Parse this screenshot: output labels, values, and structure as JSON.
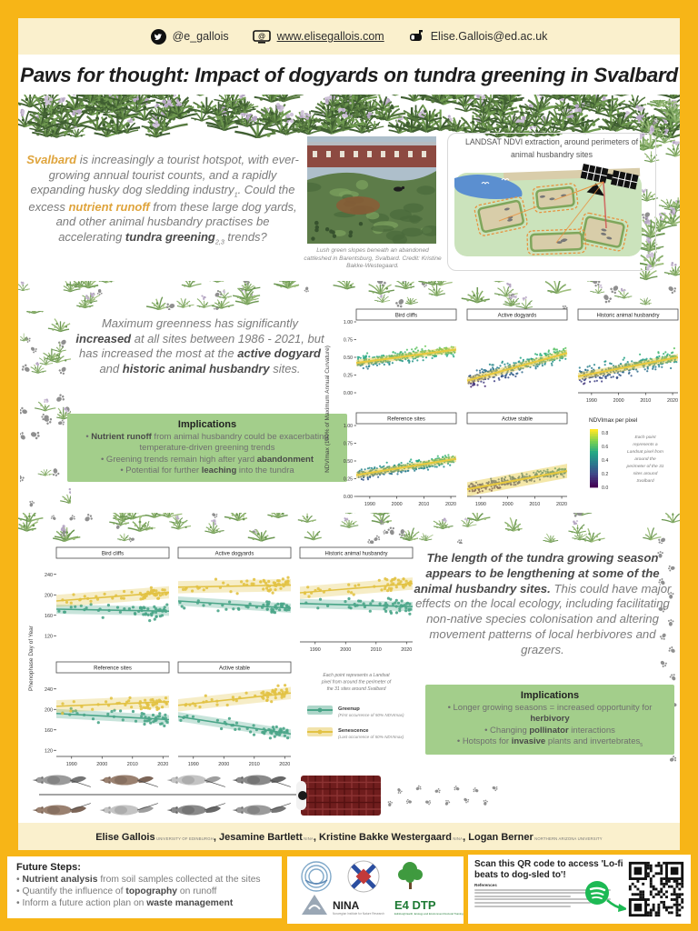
{
  "colors": {
    "frame_yellow": "#F7B517",
    "cream": "#FAF0CD",
    "implications_green": "#A3CE8B",
    "gold_text": "#DFA43C",
    "trend_yellow": "#E7C93F",
    "greenup_green": "#4AA588",
    "senescence_yellow": "#E2C244",
    "spotify_green": "#1DB954",
    "sled_red": "#6F1D1D",
    "viridis": [
      "#440154",
      "#414487",
      "#2A788E",
      "#22A884",
      "#7AD151",
      "#FDE725"
    ]
  },
  "header": {
    "twitter_handle": "@e_gallois",
    "website": "www.elisegallois.com",
    "email": "Elise.Gallois@ed.ac.uk"
  },
  "title": "Paws for thought: Impact of dogyards on tundra greening in Svalbard",
  "intro_segments": [
    {
      "t": "Svalbard",
      "s": "gold"
    },
    {
      "t": " is increasingly a tourist hotspot, with ever-growing annual tourist counts, and a rapidly expanding husky dog sledding industry"
    },
    {
      "t": "1",
      "s": "sub"
    },
    {
      "t": ". Could the excess "
    },
    {
      "t": "nutrient runoff",
      "s": "gold"
    },
    {
      "t": " from these large dog yards, and other animal husbandry practises be accelerating "
    },
    {
      "t": "tundra greening",
      "s": "db"
    },
    {
      "t": "2,3",
      "s": "sub"
    },
    {
      "t": " trends?"
    }
  ],
  "photo_caption": "Lush green slopes beneath an abandoned cattleshed in Barentsburg, Svalbard. Credit: Kristine Bakke-Westegaard.",
  "landsat_title_segments": [
    {
      "t": "LANDSAT NDVI extraction"
    },
    {
      "t": "4",
      "s": "sub"
    },
    {
      "t": " around perimeters of animal husbandry sites"
    }
  ],
  "section2": {
    "text_segments": [
      {
        "t": "Maximum greenness has significantly "
      },
      {
        "t": "increased",
        "s": "db"
      },
      {
        "t": " at all sites between 1986 - 2021, but has increased the most at the "
      },
      {
        "t": "active dogyard",
        "s": "db"
      },
      {
        "t": " and "
      },
      {
        "t": "historic animal husbandry",
        "s": "db"
      },
      {
        "t": " sites."
      }
    ],
    "implications": {
      "title": "Implications",
      "bullets": [
        [
          {
            "t": "• "
          },
          {
            "t": "Nutrient runoff",
            "s": "db"
          },
          {
            "t": " from animal husbandry could be exacerbating temperature-driven greening trends"
          }
        ],
        [
          {
            "t": "• Greening trends remain high after yard "
          },
          {
            "t": "abandonment",
            "s": "db"
          }
        ],
        [
          {
            "t": "• Potential for further "
          },
          {
            "t": "leaching",
            "s": "db"
          },
          {
            "t": " into the tundra"
          }
        ]
      ]
    }
  },
  "section3": {
    "text_segments": [
      {
        "t": "The length of the tundra growing season appears to be lengthening at some of the animal husbandry sites.",
        "s": "db"
      },
      {
        "t": " This could have major effects on the local ecology, including facilitating non-native species colonisation and altering movement patterns of local herbivores and grazers."
      }
    ],
    "implications": {
      "title": "Implications",
      "bullets": [
        [
          {
            "t": "• Longer growing seasons = increased opportunity for "
          },
          {
            "t": "herbivory",
            "s": "db"
          }
        ],
        [
          {
            "t": "• Changing "
          },
          {
            "t": "pollinator",
            "s": "db"
          },
          {
            "t": " interactions"
          }
        ],
        [
          {
            "t": "• Hotspots for "
          },
          {
            "t": "invasive",
            "s": "db"
          },
          {
            "t": " plants and invertebrates"
          },
          {
            "t": "5",
            "s": "sub"
          }
        ]
      ]
    }
  },
  "authors": [
    {
      "name": "Elise Gallois",
      "affiliation": "University of Edinburgh"
    },
    {
      "name": "Jesamine Bartlett",
      "affiliation": "NINA"
    },
    {
      "name": "Kristine Bakke Westergaard",
      "affiliation": "NINA"
    },
    {
      "name": "Logan Berner",
      "affiliation": "Northern Arizona University"
    }
  ],
  "future_steps": {
    "title": "Future Steps:",
    "bullets": [
      [
        {
          "t": "• "
        },
        {
          "t": "Nutrient analysis",
          "s": "db"
        },
        {
          "t": " from soil samples collected at the sites"
        }
      ],
      [
        {
          "t": "• Quantify the influence of "
        },
        {
          "t": "topography",
          "s": "db"
        },
        {
          "t": " on runoff"
        }
      ],
      [
        {
          "t": "• Inform a future action plan on "
        },
        {
          "t": "waste management",
          "s": "db"
        }
      ]
    ]
  },
  "logos": {
    "nina": "NINA",
    "nina_sub": "Norwegian Institute for Nature Research",
    "e4": "E4 DTP",
    "e4_sub": "Edinburgh Earth, Ecology and Environment Doctoral Training Partnership"
  },
  "qr_section": {
    "title": "Scan this QR code to access 'Lo-fi beats to dog-sled to'!",
    "references_label": "References"
  },
  "chart_data": [
    {
      "id": "ndvimax",
      "type": "scatter",
      "title": "",
      "facets": [
        "Bird cliffs",
        "Active dogyards",
        "Historic animal husbandry",
        "Reference sites",
        "Active stable"
      ],
      "x": {
        "label": "",
        "range": [
          1985,
          2022
        ],
        "ticks": [
          1990,
          2000,
          2010,
          2020
        ]
      },
      "y": {
        "label": "NDVImax (100% of Maximum Annual Curvature)",
        "range": [
          0,
          1
        ],
        "ticks": [
          1.0,
          0.75,
          0.5,
          0.25,
          0.0
        ]
      },
      "trends": {
        "Bird cliffs": [
          0.42,
          0.61
        ],
        "Active dogyards": [
          0.17,
          0.56
        ],
        "Historic animal husbandry": [
          0.23,
          0.5
        ],
        "Reference sites": [
          0.3,
          0.53
        ],
        "Active stable": [
          0.1,
          0.36
        ]
      },
      "spreads": {
        "Bird cliffs": 0.13,
        "Active dogyards": 0.17,
        "Historic animal husbandry": 0.16,
        "Reference sites": 0.12,
        "Active stable": 0.1
      },
      "ribbons": {
        "Bird cliffs": 0.045,
        "Active dogyards": 0.05,
        "Historic animal husbandry": 0.05,
        "Reference sites": 0.045,
        "Active stable": 0.1
      },
      "trend_color": "#E7C93F",
      "legend": {
        "title": "NDVImax per pixel",
        "ticks": [
          0.8,
          0.6,
          0.4,
          0.2,
          0.0
        ],
        "caption_lines": [
          "Each point",
          "represents a",
          "Landsat pixel from",
          "around the",
          "perimeter of the 31",
          "sites around",
          "Svalbard"
        ]
      }
    },
    {
      "id": "phenophase",
      "type": "scatter",
      "facets": [
        "Bird cliffs",
        "Active dogyards",
        "Historic animal husbandry",
        "Reference sites",
        "Active stable"
      ],
      "x": {
        "label": "",
        "range": [
          1985,
          2022
        ],
        "ticks": [
          1990,
          2000,
          2010,
          2020
        ]
      },
      "y": {
        "label": "Phenophase Day of Year",
        "range": [
          108,
          268
        ],
        "ticks": [
          240,
          200,
          160,
          120
        ]
      },
      "series": [
        {
          "name": "Greenup",
          "desc": "(First occurrence of 50% NDVImax)",
          "color": "#4AA588",
          "ribbon": 9,
          "trends": {
            "Bird cliffs": [
              172,
              168
            ],
            "Active dogyards": [
              188,
              174
            ],
            "Historic animal husbandry": [
              183,
              177
            ],
            "Reference sites": [
              192,
              180
            ],
            "Active stable": [
              186,
              152
            ]
          }
        },
        {
          "name": "Senescence",
          "desc": "(Last occurrence of 50% NDVImax)",
          "color": "#E2C244",
          "ribbon": 12,
          "trends": {
            "Bird cliffs": [
              188,
              205
            ],
            "Active dogyards": [
              215,
              219
            ],
            "Historic animal husbandry": [
              204,
              222
            ],
            "Reference sites": [
              206,
              215
            ],
            "Active stable": [
              208,
              232
            ]
          }
        }
      ],
      "caption_lines": [
        "Each point represents a Landsat",
        "pixel from around the perimeter of",
        "the 31 sites around Svalbard"
      ]
    }
  ]
}
